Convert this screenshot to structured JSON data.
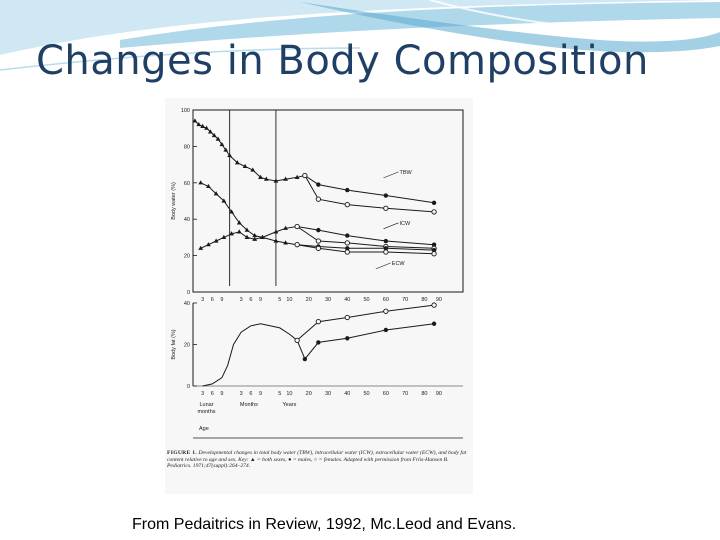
{
  "slide": {
    "title": "Changes in Body Composition",
    "source": "From Pedaitrics in Review, 1992, Mc.Leod and Evans."
  },
  "colors": {
    "title": "#1f3f64",
    "wave_dark": "#5aa9cf",
    "wave_light": "#b7dcec",
    "ink": "#1a1a1a"
  },
  "figure": {
    "caption_label": "FIGURE 1.",
    "caption_text": "Developmental changes in total body water (TBW), intracellular water (ICW), extracellular water (ECW), and body fat content relative to age and sex. Key: ▲ = both sexes, ● = males, ○ = females. Adapted with permission from Friis-Hansen B. Pediatrics. 1971;47(suppl):264–274."
  },
  "chart_data": [
    {
      "type": "line",
      "panel": "body-water",
      "ylabel": "Body water (%)",
      "ylim": [
        0,
        100
      ],
      "y_ticks": [
        0,
        20,
        40,
        60,
        80,
        100
      ],
      "xlim": [
        0,
        28
      ],
      "x_ticks": [
        {
          "x": 1,
          "label": "3"
        },
        {
          "x": 2,
          "label": "6"
        },
        {
          "x": 3,
          "label": "9"
        },
        {
          "x": 5,
          "label": "3"
        },
        {
          "x": 6,
          "label": "6"
        },
        {
          "x": 7,
          "label": "9"
        },
        {
          "x": 9,
          "label": "5"
        },
        {
          "x": 10,
          "label": "10"
        },
        {
          "x": 12,
          "label": "20"
        },
        {
          "x": 14,
          "label": "30"
        },
        {
          "x": 16,
          "label": "40"
        },
        {
          "x": 18,
          "label": "50"
        },
        {
          "x": 20,
          "label": "60"
        },
        {
          "x": 22,
          "label": "70"
        },
        {
          "x": 24,
          "label": "80"
        },
        {
          "x": 25.5,
          "label": "90"
        }
      ],
      "dividers": [
        3.8,
        8.6
      ],
      "labels": [
        {
          "text": "TBW",
          "x": 21,
          "y": 66
        },
        {
          "text": "ICW",
          "x": 21,
          "y": 38
        },
        {
          "text": "ECW",
          "x": 20.2,
          "y": 16
        }
      ],
      "series": [
        {
          "name": "TBW",
          "group": "both",
          "marker": "triangle",
          "x": [
            0.2,
            0.6,
            1.0,
            1.4,
            1.8,
            2.2,
            2.6,
            3.0,
            3.4,
            3.8,
            4.6,
            5.4,
            6.2,
            7.0,
            7.6,
            8.6,
            9.6,
            10.8,
            11.6
          ],
          "y": [
            94,
            92,
            91,
            90,
            88,
            86,
            84,
            81,
            78,
            75,
            71,
            69,
            67,
            63,
            62,
            61,
            62,
            63,
            64
          ]
        },
        {
          "name": "TBW",
          "group": "male",
          "marker": "filled-circle",
          "x": [
            11.6,
            13.0,
            16.0,
            20.0,
            25.0
          ],
          "y": [
            64,
            59,
            56,
            53,
            49
          ]
        },
        {
          "name": "TBW",
          "group": "female",
          "marker": "open-circle",
          "x": [
            11.6,
            13.0,
            16.0,
            20.0,
            25.0
          ],
          "y": [
            64,
            51,
            48,
            46,
            44
          ]
        },
        {
          "name": "ICW",
          "group": "both",
          "marker": "triangle",
          "x": [
            0.8,
            1.6,
            2.4,
            3.2,
            4.0,
            4.8,
            5.6,
            6.4,
            7.2,
            8.6,
            9.6,
            10.8
          ],
          "y": [
            24,
            26,
            28,
            30,
            32,
            33,
            30,
            29,
            30,
            33,
            35,
            36
          ]
        },
        {
          "name": "ICW",
          "group": "male",
          "marker": "filled-circle",
          "x": [
            10.8,
            13.0,
            16.0,
            20.0,
            25.0
          ],
          "y": [
            36,
            34,
            31,
            28,
            26
          ]
        },
        {
          "name": "ICW",
          "group": "female",
          "marker": "open-circle",
          "x": [
            10.8,
            13.0,
            16.0,
            20.0,
            25.0
          ],
          "y": [
            36,
            28,
            27,
            25,
            24
          ]
        },
        {
          "name": "ECW",
          "group": "both",
          "marker": "triangle",
          "x": [
            0.8,
            1.6,
            2.4,
            3.2,
            4.0,
            4.8,
            5.6,
            6.4,
            7.2,
            8.6,
            9.6,
            10.8
          ],
          "y": [
            60,
            58,
            54,
            50,
            44,
            38,
            34,
            31,
            30,
            28,
            27,
            26
          ]
        },
        {
          "name": "ECW",
          "group": "male",
          "marker": "filled-circle",
          "x": [
            10.8,
            13.0,
            16.0,
            20.0,
            25.0
          ],
          "y": [
            26,
            25,
            24,
            24,
            23
          ]
        },
        {
          "name": "ECW",
          "group": "female",
          "marker": "open-circle",
          "x": [
            10.8,
            13.0,
            16.0,
            20.0,
            25.0
          ],
          "y": [
            26,
            24,
            22,
            22,
            21
          ]
        }
      ]
    },
    {
      "type": "line",
      "panel": "body-fat",
      "ylabel": "Body fat (%)",
      "ylim": [
        0,
        40
      ],
      "y_ticks": [
        0,
        20,
        40
      ],
      "xlim": [
        0,
        28
      ],
      "x_ticks": [
        {
          "x": 1,
          "label": "3"
        },
        {
          "x": 2,
          "label": "6"
        },
        {
          "x": 3,
          "label": "9"
        },
        {
          "x": 5,
          "label": "3"
        },
        {
          "x": 6,
          "label": "6"
        },
        {
          "x": 7,
          "label": "9"
        },
        {
          "x": 9,
          "label": "5"
        },
        {
          "x": 10,
          "label": "10"
        },
        {
          "x": 12,
          "label": "20"
        },
        {
          "x": 14,
          "label": "30"
        },
        {
          "x": 16,
          "label": "40"
        },
        {
          "x": 18,
          "label": "50"
        },
        {
          "x": 20,
          "label": "60"
        },
        {
          "x": 22,
          "label": "70"
        },
        {
          "x": 24,
          "label": "80"
        },
        {
          "x": 25.5,
          "label": "90"
        }
      ],
      "x_groups": [
        {
          "x": 1.4,
          "label": "Lunar"
        },
        {
          "x": 1.4,
          "label": "months"
        },
        {
          "x": 5.8,
          "label": "Months"
        },
        {
          "x": 10.0,
          "label": "Years"
        }
      ],
      "xlabel": "Age",
      "series": [
        {
          "name": "Body fat",
          "group": "both",
          "marker": "none",
          "x": [
            1.0,
            2.0,
            3.0,
            3.6,
            4.2,
            5.0,
            6.0,
            7.0,
            8.0,
            9.0,
            10.0,
            10.8
          ],
          "y": [
            0,
            1,
            4,
            10,
            20,
            26,
            29,
            30,
            29,
            28,
            25,
            22
          ]
        },
        {
          "name": "Body fat",
          "group": "male",
          "marker": "filled-circle",
          "x": [
            10.8,
            11.6,
            13.0,
            16.0,
            20.0,
            25.0
          ],
          "y": [
            22,
            13,
            21,
            23,
            27,
            30
          ]
        },
        {
          "name": "Body fat",
          "group": "female",
          "marker": "open-circle",
          "x": [
            10.8,
            13.0,
            16.0,
            20.0,
            25.0
          ],
          "y": [
            22,
            31,
            33,
            36,
            39
          ]
        }
      ]
    }
  ]
}
